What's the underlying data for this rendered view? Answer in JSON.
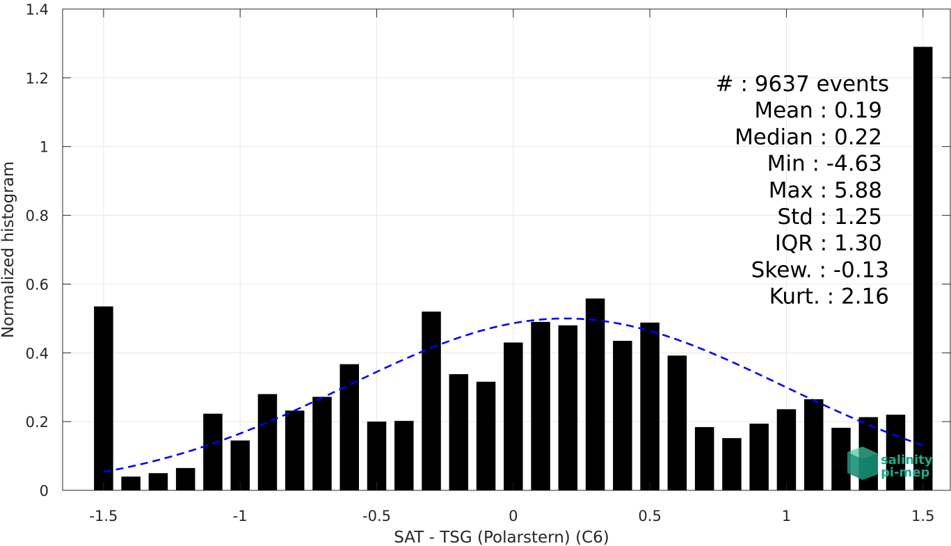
{
  "chart_data": {
    "type": "bar",
    "xlabel": "SAT - TSG (Polarstern) (C6)",
    "ylabel": "Normalized histogram",
    "xlim": [
      -1.65,
      1.6
    ],
    "ylim": [
      0,
      1.4
    ],
    "grid": true,
    "x_ticks": [
      -1.5,
      -1,
      -0.5,
      0,
      0.5,
      1,
      1.5
    ],
    "x_tick_labels": [
      "-1.5",
      "-1",
      "-0.5",
      "0",
      "0.5",
      "1",
      "1.5"
    ],
    "y_ticks": [
      0,
      0.2,
      0.4,
      0.6,
      0.8,
      1,
      1.2,
      1.4
    ],
    "y_tick_labels": [
      "0",
      "0.2",
      "0.4",
      "0.6",
      "0.8",
      "1",
      "1.2",
      "1.4"
    ],
    "bar_width": 0.07,
    "x": [
      -1.5,
      -1.4,
      -1.3,
      -1.2,
      -1.1,
      -1.0,
      -0.9,
      -0.8,
      -0.7,
      -0.6,
      -0.5,
      -0.4,
      -0.3,
      -0.2,
      -0.1,
      0.0,
      0.1,
      0.2,
      0.3,
      0.4,
      0.5,
      0.6,
      0.7,
      0.8,
      0.9,
      1.0,
      1.1,
      1.2,
      1.3,
      1.4,
      1.5
    ],
    "values": [
      0.535,
      0.04,
      0.05,
      0.065,
      0.223,
      0.145,
      0.28,
      0.232,
      0.272,
      0.367,
      0.2,
      0.202,
      0.52,
      0.338,
      0.316,
      0.43,
      0.49,
      0.48,
      0.558,
      0.435,
      0.488,
      0.392,
      0.184,
      0.152,
      0.194,
      0.236,
      0.265,
      0.182,
      0.213,
      0.22,
      1.29
    ],
    "bar_color": "#000000",
    "fit_curve": {
      "style": "dashed",
      "color": "#0000ff",
      "mean": 0.19,
      "std": 0.8,
      "peak": 0.5,
      "x_range": [
        -1.5,
        1.5
      ]
    },
    "stats": [
      {
        "label": "#  : 9637 events"
      },
      {
        "label": "Mean : 0.19"
      },
      {
        "label": "Median : 0.22"
      },
      {
        "label": "Min : -4.63"
      },
      {
        "label": "Max : 5.88"
      },
      {
        "label": "Std : 1.25"
      },
      {
        "label": "IQR : 1.30"
      },
      {
        "label": "Skew. : -0.13"
      },
      {
        "label": "Kurt. : 2.16"
      }
    ]
  },
  "logo": {
    "line1": "salinity",
    "line2": "pi-mep",
    "color": "#1aab8a"
  }
}
